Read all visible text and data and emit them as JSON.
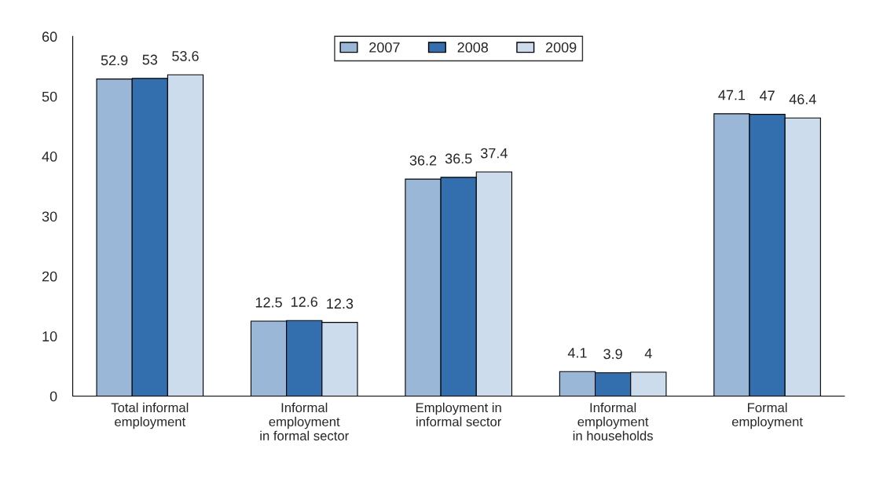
{
  "chart_data": {
    "type": "bar",
    "categories": [
      "Total informal\nemployment",
      "Informal\nemployment\nin formal sector",
      "Employment in\ninformal sector",
      "Informal\nemployment\nin households",
      "Formal\nemployment"
    ],
    "series": [
      {
        "name": "2007",
        "color": "#9ab7d8",
        "values": [
          52.9,
          12.5,
          36.2,
          4.1,
          47.1
        ]
      },
      {
        "name": "2008",
        "color": "#336fae",
        "values": [
          53,
          12.6,
          36.5,
          3.9,
          47
        ]
      },
      {
        "name": "2009",
        "color": "#cddcec",
        "values": [
          53.6,
          12.3,
          37.4,
          4,
          46.4
        ]
      }
    ],
    "ylim": [
      0,
      60
    ],
    "yticks": [
      0,
      10,
      20,
      30,
      40,
      50,
      60
    ],
    "data_labels": true,
    "grid": false,
    "legend": "top"
  }
}
